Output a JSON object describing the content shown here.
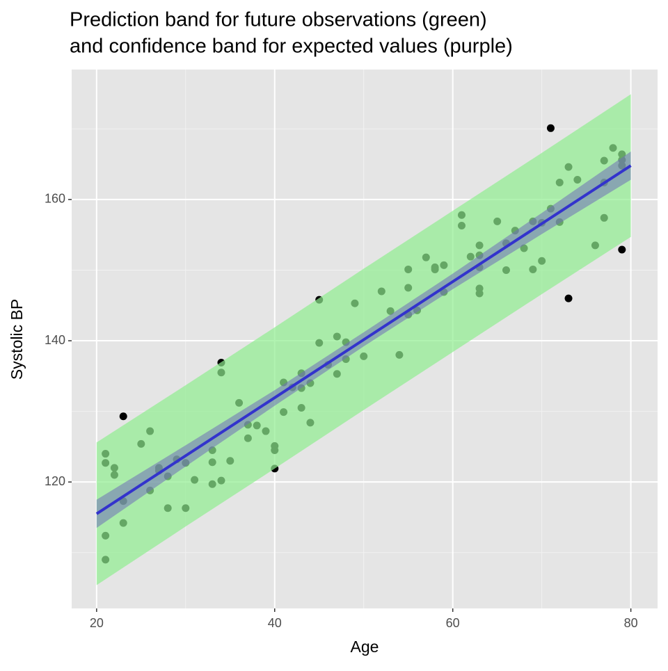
{
  "chart_data": {
    "type": "scatter",
    "title": [
      "Prediction band for future observations (green)",
      "and confidence band for expected values (purple)"
    ],
    "x_label": "Age",
    "y_label": "Systolic BP",
    "xlim": [
      17.2,
      83
    ],
    "ylim": [
      102.1,
      178.4
    ],
    "xticks": [
      20,
      40,
      60,
      80
    ],
    "yticks": [
      120,
      140,
      160
    ],
    "xminor": [
      30,
      50,
      70
    ],
    "yminor": [
      110,
      130,
      150,
      170
    ],
    "grid": true,
    "color": "#000000",
    "x": [
      21,
      21,
      21,
      21,
      22,
      22,
      23,
      23,
      23,
      25,
      26,
      26,
      27,
      27,
      28,
      28,
      29,
      30,
      30,
      31,
      33,
      33,
      33,
      34,
      34,
      34,
      35,
      36,
      37,
      37,
      38,
      39,
      40,
      40,
      40,
      41,
      41,
      42,
      43,
      43,
      43,
      44,
      44,
      45,
      45,
      46,
      47,
      47,
      48,
      48,
      49,
      50,
      52,
      53,
      54,
      55,
      55,
      55,
      56,
      57,
      58,
      58,
      59,
      59,
      61,
      61,
      62,
      63,
      63,
      63,
      63,
      63,
      65,
      66,
      66,
      67,
      68,
      69,
      69,
      70,
      70,
      71,
      71,
      72,
      72,
      73,
      73,
      74,
      76,
      77,
      77,
      77,
      78,
      79,
      79,
      79,
      79
    ],
    "values": [
      124.0,
      122.7,
      112.4,
      109.0,
      122.0,
      121.0,
      129.3,
      117.3,
      114.2,
      125.4,
      127.2,
      118.8,
      122.0,
      121.6,
      120.8,
      116.3,
      123.2,
      122.7,
      116.3,
      120.3,
      124.5,
      122.8,
      119.7,
      136.9,
      135.5,
      120.2,
      123.0,
      131.2,
      128.1,
      126.2,
      128.0,
      127.2,
      125.1,
      124.5,
      121.9,
      134.1,
      129.9,
      133.4,
      135.4,
      133.3,
      130.5,
      134.0,
      128.4,
      145.8,
      139.7,
      136.6,
      140.6,
      135.3,
      139.8,
      137.4,
      145.3,
      137.8,
      147.0,
      144.2,
      138.0,
      150.1,
      147.5,
      143.7,
      144.3,
      151.8,
      150.4,
      150.1,
      150.7,
      146.9,
      157.8,
      156.3,
      151.9,
      153.5,
      152.1,
      150.4,
      147.4,
      146.7,
      156.9,
      153.8,
      150.0,
      155.6,
      153.1,
      156.9,
      150.1,
      156.7,
      151.3,
      170.1,
      158.7,
      156.8,
      162.4,
      164.6,
      146.0,
      162.8,
      153.5,
      165.5,
      162.4,
      157.4,
      167.3,
      166.4,
      165.6,
      164.8,
      152.9
    ],
    "prediction_band": {
      "color": "#90ee90",
      "x": [
        20,
        30,
        40,
        50,
        60,
        70,
        80
      ],
      "lower": [
        105.4,
        113.7,
        121.9,
        130.2,
        138.4,
        146.6,
        154.7
      ],
      "upper": [
        125.6,
        133.7,
        141.9,
        150.2,
        158.4,
        166.6,
        174.9
      ]
    },
    "confidence_band": {
      "color": "#7070b8",
      "x": [
        20,
        30,
        40,
        50,
        60,
        70,
        80
      ],
      "lower": [
        113.5,
        122.2,
        130.8,
        139.2,
        147.3,
        155.1,
        162.8
      ],
      "upper": [
        117.5,
        125.2,
        133.0,
        141.2,
        149.5,
        158.1,
        166.8
      ]
    },
    "fit_line": {
      "color": "#3333cc",
      "x": [
        20,
        80
      ],
      "values": [
        115.5,
        164.8
      ]
    }
  }
}
